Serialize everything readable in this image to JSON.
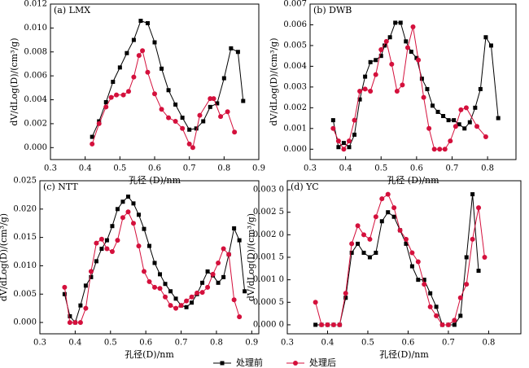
{
  "chart_data": [
    {
      "type": "line",
      "title": "(a) LMX",
      "x_label": "孔径 (D)/nm",
      "y_label": "dV/dLog(D)/(cm³/g)",
      "xlim": [
        0.3,
        0.9
      ],
      "xticks": [
        0.3,
        0.4,
        0.5,
        0.6,
        0.7,
        0.8,
        0.9
      ],
      "ylim": [
        -0.001,
        0.012
      ],
      "yticks": [
        {
          "value": 0,
          "label": "0.000"
        },
        {
          "value": 0.002,
          "label": "0.002"
        },
        {
          "value": 0.004,
          "label": "0.004"
        },
        {
          "value": 0.006,
          "label": "0.006"
        },
        {
          "value": 0.008,
          "label": "0.008"
        },
        {
          "value": 0.01,
          "label": "0.010"
        },
        {
          "value": 0.012,
          "label": "0.012"
        }
      ],
      "series": [
        {
          "name": "处理前",
          "color": "#000000",
          "marker": "square",
          "x": [
            0.42,
            0.44,
            0.46,
            0.48,
            0.5,
            0.52,
            0.54,
            0.56,
            0.58,
            0.6,
            0.62,
            0.64,
            0.66,
            0.68,
            0.7,
            0.72,
            0.74,
            0.76,
            0.78,
            0.8,
            0.82,
            0.84,
            0.855
          ],
          "values": [
            0.0009,
            0.0022,
            0.0038,
            0.0055,
            0.0067,
            0.0079,
            0.009,
            0.0106,
            0.0104,
            0.0088,
            0.0066,
            0.0048,
            0.0036,
            0.0025,
            0.0015,
            0.0016,
            0.0022,
            0.0034,
            0.0037,
            0.0058,
            0.0083,
            0.008,
            0.0039
          ]
        },
        {
          "name": "处理后",
          "color": "#d4103c",
          "marker": "circle",
          "x": [
            0.42,
            0.44,
            0.46,
            0.475,
            0.49,
            0.51,
            0.525,
            0.54,
            0.555,
            0.565,
            0.58,
            0.6,
            0.62,
            0.64,
            0.66,
            0.68,
            0.7,
            0.71,
            0.73,
            0.76,
            0.77,
            0.79,
            0.81,
            0.83
          ],
          "values": [
            0.0003,
            0.002,
            0.0034,
            0.0042,
            0.0044,
            0.0044,
            0.0047,
            0.0059,
            0.0077,
            0.0081,
            0.0063,
            0.0045,
            0.0032,
            0.0025,
            0.0022,
            0.0016,
            0.0003,
            0.0,
            0.0027,
            0.0041,
            0.0041,
            0.0026,
            0.003,
            0.0013
          ]
        }
      ]
    },
    {
      "type": "line",
      "title": "(b) DWB",
      "x_label": "孔径 (D)/nm",
      "y_label": "dV/dLog(D)/(cm³/g)",
      "xlim": [
        0.3,
        0.88
      ],
      "xticks": [
        0.3,
        0.4,
        0.5,
        0.6,
        0.7,
        0.8
      ],
      "ylim": [
        -0.0005,
        0.007
      ],
      "yticks": [
        {
          "value": 0,
          "label": "0.000"
        },
        {
          "value": 0.001,
          "label": "0.001"
        },
        {
          "value": 0.002,
          "label": "0.002"
        },
        {
          "value": 0.003,
          "label": "0.003"
        },
        {
          "value": 0.004,
          "label": "0.004"
        },
        {
          "value": 0.005,
          "label": "0.005"
        },
        {
          "value": 0.006,
          "label": "0.006"
        },
        {
          "value": 0.007,
          "label": "0.007"
        }
      ],
      "series": [
        {
          "name": "处理前",
          "color": "#000000",
          "marker": "square",
          "x": [
            0.365,
            0.38,
            0.395,
            0.41,
            0.425,
            0.44,
            0.455,
            0.47,
            0.485,
            0.5,
            0.51,
            0.525,
            0.54,
            0.555,
            0.57,
            0.585,
            0.6,
            0.615,
            0.63,
            0.645,
            0.66,
            0.675,
            0.69,
            0.705,
            0.72,
            0.735,
            0.75,
            0.765,
            0.78,
            0.795,
            0.81,
            0.83
          ],
          "values": [
            0.0014,
            0.0001,
            0.0003,
            0.0001,
            0.0007,
            0.0024,
            0.0035,
            0.0042,
            0.0043,
            0.0045,
            0.005,
            0.0054,
            0.0061,
            0.0061,
            0.0052,
            0.0047,
            0.0044,
            0.0034,
            0.0029,
            0.0021,
            0.0018,
            0.0016,
            0.0014,
            0.0014,
            0.0012,
            0.001,
            0.0013,
            0.002,
            0.0029,
            0.0054,
            0.005,
            0.0015
          ]
        },
        {
          "name": "处理后",
          "color": "#d4103c",
          "marker": "circle",
          "x": [
            0.365,
            0.38,
            0.395,
            0.41,
            0.425,
            0.44,
            0.455,
            0.47,
            0.485,
            0.5,
            0.515,
            0.53,
            0.545,
            0.56,
            0.575,
            0.59,
            0.605,
            0.62,
            0.635,
            0.65,
            0.665,
            0.68,
            0.695,
            0.71,
            0.725,
            0.74,
            0.77,
            0.795
          ],
          "values": [
            0.001,
            0.0004,
            0.0,
            0.0004,
            0.0014,
            0.0028,
            0.0029,
            0.0028,
            0.0036,
            0.0048,
            0.0052,
            0.0041,
            0.0028,
            0.0031,
            0.0049,
            0.0059,
            0.0043,
            0.0025,
            0.001,
            0.0,
            0.0,
            0.0,
            0.0004,
            0.0011,
            0.0019,
            0.002,
            0.0011,
            0.0006
          ]
        }
      ]
    },
    {
      "type": "line",
      "title": "(c) NTT",
      "x_label": "孔径(D)/nm",
      "y_label": "dV/dLog(D)/(cm³/g)",
      "xlim": [
        0.3,
        0.92
      ],
      "xticks": [
        0.3,
        0.4,
        0.5,
        0.6,
        0.7,
        0.8,
        0.9
      ],
      "ylim": [
        -0.002,
        0.025
      ],
      "yticks": [
        {
          "value": 0,
          "label": "0.000"
        },
        {
          "value": 0.005,
          "label": "0.005"
        },
        {
          "value": 0.01,
          "label": "0.010"
        },
        {
          "value": 0.015,
          "label": "0.015"
        },
        {
          "value": 0.02,
          "label": "0.020"
        },
        {
          "value": 0.025,
          "label": "0.025"
        }
      ],
      "series": [
        {
          "name": "处理前",
          "color": "#000000",
          "marker": "square",
          "x": [
            0.37,
            0.385,
            0.4,
            0.415,
            0.43,
            0.445,
            0.46,
            0.475,
            0.49,
            0.505,
            0.52,
            0.535,
            0.55,
            0.565,
            0.58,
            0.595,
            0.61,
            0.625,
            0.64,
            0.655,
            0.67,
            0.685,
            0.7,
            0.715,
            0.73,
            0.745,
            0.76,
            0.775,
            0.79,
            0.805,
            0.82,
            0.835,
            0.85,
            0.865,
            0.88
          ],
          "values": [
            0.005,
            0.0011,
            0.0,
            0.003,
            0.0065,
            0.008,
            0.0108,
            0.013,
            0.0145,
            0.017,
            0.02,
            0.0213,
            0.0222,
            0.021,
            0.019,
            0.0165,
            0.0135,
            0.0105,
            0.0085,
            0.0068,
            0.0055,
            0.0042,
            0.003,
            0.0027,
            0.0035,
            0.005,
            0.007,
            0.009,
            0.0083,
            0.007,
            0.008,
            0.012,
            0.0166,
            0.0145,
            0.0055
          ]
        },
        {
          "name": "处理后",
          "color": "#d4103c",
          "marker": "circle",
          "x": [
            0.37,
            0.385,
            0.4,
            0.415,
            0.43,
            0.445,
            0.46,
            0.475,
            0.49,
            0.505,
            0.52,
            0.535,
            0.55,
            0.565,
            0.58,
            0.595,
            0.61,
            0.625,
            0.64,
            0.655,
            0.67,
            0.685,
            0.7,
            0.715,
            0.73,
            0.745,
            0.76,
            0.775,
            0.79,
            0.805,
            0.82,
            0.835,
            0.85,
            0.865
          ],
          "values": [
            0.0062,
            0.0,
            0.0,
            0.0,
            0.0025,
            0.009,
            0.014,
            0.0147,
            0.013,
            0.0125,
            0.0145,
            0.0185,
            0.0195,
            0.0175,
            0.0135,
            0.009,
            0.0072,
            0.0062,
            0.006,
            0.0045,
            0.003,
            0.0025,
            0.003,
            0.0038,
            0.0045,
            0.0052,
            0.0053,
            0.0062,
            0.0085,
            0.0105,
            0.013,
            0.012,
            0.004,
            0.001
          ]
        }
      ]
    },
    {
      "type": "line",
      "title": "(d) YC",
      "x_label": "孔径(D)/nm",
      "y_label": "dV/dLog(D)/(cm³/g)",
      "xlim": [
        0.3,
        0.88
      ],
      "xticks": [
        0.3,
        0.4,
        0.5,
        0.6,
        0.7,
        0.8
      ],
      "ylim": [
        -0.0002,
        0.0032
      ],
      "yticks": [
        {
          "value": 0,
          "label": "0.000 0"
        },
        {
          "value": 0.0005,
          "label": "0.000 5"
        },
        {
          "value": 0.001,
          "label": "0.001 0"
        },
        {
          "value": 0.0015,
          "label": "0.001 5"
        },
        {
          "value": 0.002,
          "label": "0.002 0"
        },
        {
          "value": 0.0025,
          "label": "0.002 5"
        },
        {
          "value": 0.003,
          "label": "0.003 0"
        }
      ],
      "series": [
        {
          "name": "处理前",
          "color": "#000000",
          "marker": "square",
          "x": [
            0.37,
            0.385,
            0.4,
            0.415,
            0.43,
            0.445,
            0.46,
            0.475,
            0.49,
            0.505,
            0.52,
            0.535,
            0.55,
            0.565,
            0.58,
            0.595,
            0.61,
            0.625,
            0.64,
            0.655,
            0.67,
            0.685,
            0.7,
            0.715,
            0.73,
            0.745,
            0.76,
            0.775
          ],
          "values": [
            0.0,
            0.0,
            0.0,
            0.0,
            0.0,
            0.0006,
            0.0016,
            0.0018,
            0.0016,
            0.0015,
            0.0016,
            0.0023,
            0.0025,
            0.0024,
            0.0021,
            0.0018,
            0.0013,
            0.001,
            0.001,
            0.0007,
            0.0004,
            0.0,
            0.0,
            0.0,
            0.0002,
            0.0015,
            0.0029,
            0.0012
          ]
        },
        {
          "name": "处理后",
          "color": "#d4103c",
          "marker": "circle",
          "x": [
            0.37,
            0.385,
            0.4,
            0.415,
            0.43,
            0.445,
            0.46,
            0.475,
            0.49,
            0.505,
            0.52,
            0.535,
            0.55,
            0.565,
            0.58,
            0.595,
            0.61,
            0.625,
            0.64,
            0.655,
            0.67,
            0.685,
            0.7,
            0.715,
            0.73,
            0.745,
            0.76,
            0.775,
            0.79
          ],
          "values": [
            0.0005,
            0.0,
            0.0,
            0.0,
            0.0,
            0.0007,
            0.0018,
            0.0022,
            0.002,
            0.0019,
            0.0024,
            0.0028,
            0.0029,
            0.0026,
            0.0021,
            0.0019,
            0.0016,
            0.0014,
            0.0009,
            0.0004,
            0.0002,
            0.0,
            0.0,
            0.0001,
            0.0006,
            0.0009,
            0.0019,
            0.0026,
            0.0015
          ]
        }
      ]
    }
  ]
}
